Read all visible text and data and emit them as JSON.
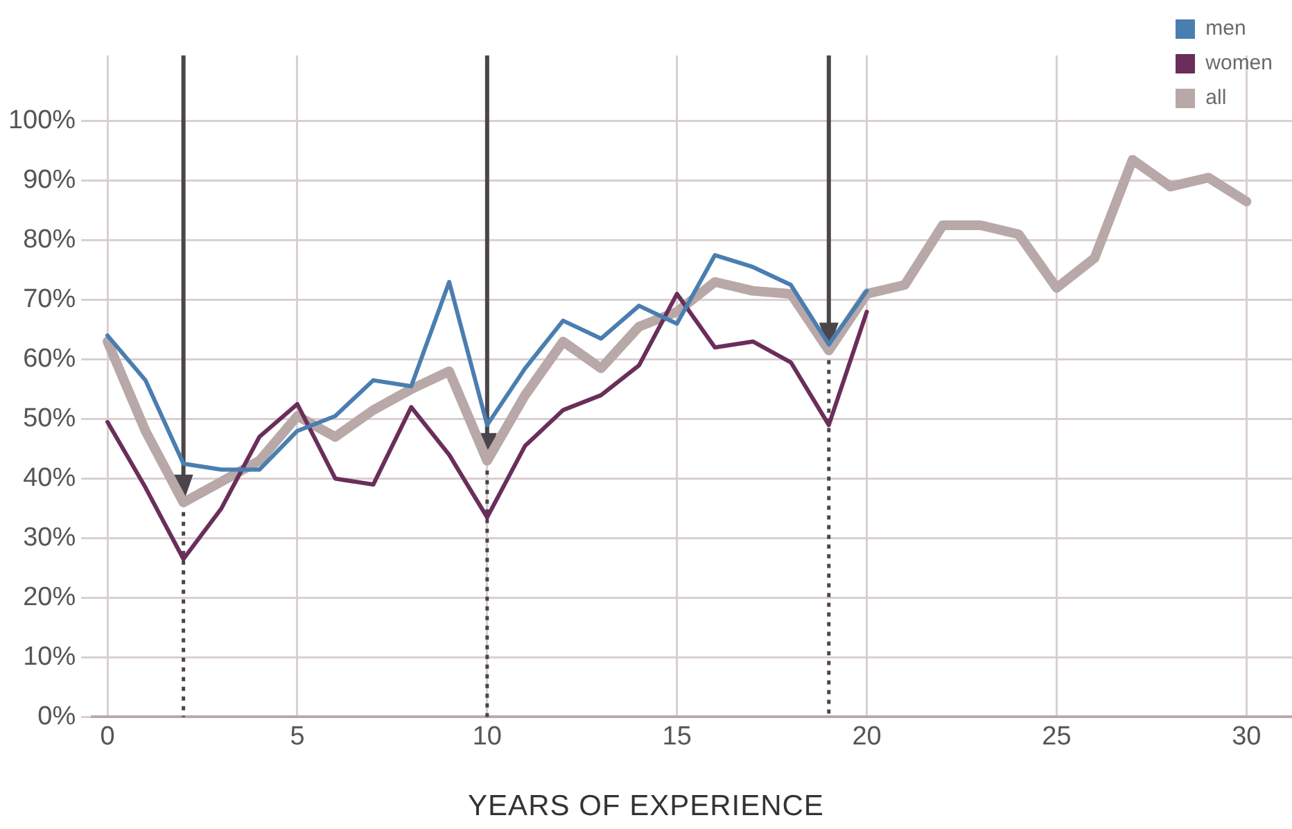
{
  "chart_data": {
    "type": "line",
    "xlabel": "YEARS OF EXPERIENCE",
    "xlim": [
      -0.4,
      31.2
    ],
    "xticks": [
      0,
      5,
      10,
      15,
      20,
      25,
      30
    ],
    "ylim": [
      0,
      111
    ],
    "yticks": [
      {
        "value": 0,
        "label": "0%"
      },
      {
        "value": 10,
        "label": "10%"
      },
      {
        "value": 20,
        "label": "20%"
      },
      {
        "value": 30,
        "label": "30%"
      },
      {
        "value": 40,
        "label": "40%"
      },
      {
        "value": 50,
        "label": "50%"
      },
      {
        "value": 60,
        "label": "60%"
      },
      {
        "value": 70,
        "label": "70%"
      },
      {
        "value": 80,
        "label": "80%"
      },
      {
        "value": 90,
        "label": "90%"
      },
      {
        "value": 100,
        "label": "100%"
      }
    ],
    "grid": true,
    "legend": "top right",
    "marker": "none",
    "line_style": "solid",
    "ref_lines": [
      {
        "axis": "x",
        "value": 2,
        "line_style": "dotted",
        "color": "#4a4548"
      },
      {
        "axis": "x",
        "value": 10,
        "line_style": "dotted",
        "color": "#4a4548"
      },
      {
        "axis": "x",
        "value": 19,
        "line_style": "dotted",
        "color": "#4a4548"
      }
    ],
    "series": [
      {
        "name": "men",
        "color": "#4a7eb0",
        "x": [
          0,
          1,
          2,
          3,
          4,
          5,
          6,
          7,
          8,
          9,
          10,
          11,
          12,
          13,
          14,
          15,
          16,
          17,
          18,
          19,
          20
        ],
        "values": [
          64,
          56.5,
          42.5,
          41.5,
          41.5,
          48,
          50.5,
          56.5,
          55.5,
          73,
          49,
          58.5,
          66.5,
          63.5,
          69,
          66,
          77.5,
          75.5,
          72.5,
          62.5,
          71.5
        ]
      },
      {
        "name": "women",
        "color": "#6a2e5b",
        "x": [
          0,
          1,
          2,
          3,
          4,
          5,
          6,
          7,
          8,
          9,
          10,
          11,
          12,
          13,
          14,
          15,
          16,
          17,
          18,
          19,
          20
        ],
        "values": [
          49.5,
          38.5,
          26.5,
          35,
          47,
          52.5,
          40,
          39,
          52,
          44,
          33.5,
          45.5,
          51.5,
          54,
          59,
          71,
          62,
          63,
          59.5,
          49,
          68
        ]
      },
      {
        "name": "all",
        "color": "#b8a8a8",
        "x": [
          0,
          1,
          2,
          3,
          4,
          5,
          6,
          7,
          8,
          9,
          10,
          11,
          12,
          13,
          14,
          15,
          16,
          17,
          18,
          19,
          20,
          21,
          22,
          23,
          24,
          25,
          26,
          27,
          28,
          29,
          30
        ],
        "values": [
          63,
          48,
          36,
          39.5,
          43,
          50.5,
          47,
          51.5,
          55,
          58,
          43,
          54,
          63,
          58.5,
          65.5,
          68,
          73,
          71.5,
          71,
          61.5,
          71,
          72.5,
          82.5,
          82.5,
          81,
          72,
          77,
          93.5,
          89,
          90.5,
          86.5
        ]
      }
    ]
  }
}
